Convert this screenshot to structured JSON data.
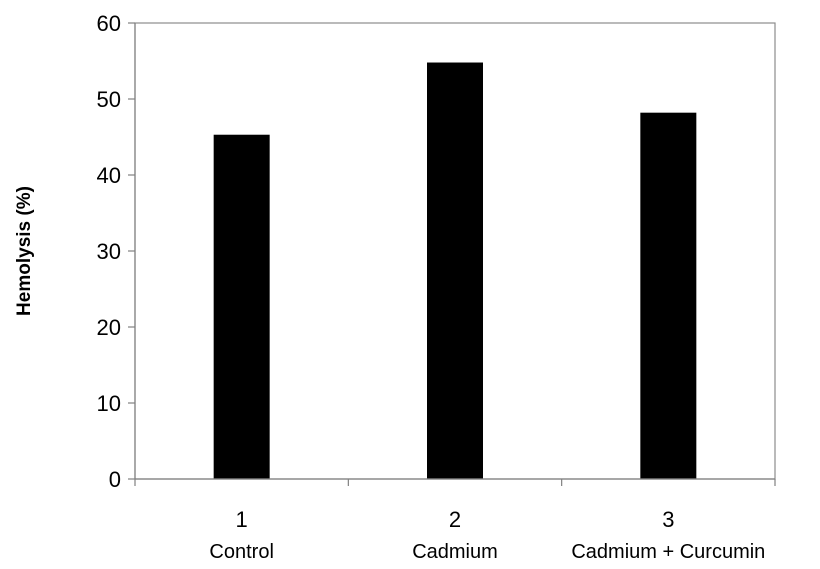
{
  "chart_data": {
    "type": "bar",
    "ylabel": "Hemolysis (%)",
    "xlabel": "",
    "ylim": [
      0,
      60
    ],
    "yticks": [
      0,
      10,
      20,
      30,
      40,
      50,
      60
    ],
    "categories": [
      "1",
      "2",
      "3"
    ],
    "category_sublabels": [
      "Control",
      "Cadmium",
      "Cadmium  + Curcumin"
    ],
    "values": [
      45.3,
      54.8,
      48.2
    ],
    "bar_color": "#000000",
    "grid": false,
    "legend": "none"
  }
}
